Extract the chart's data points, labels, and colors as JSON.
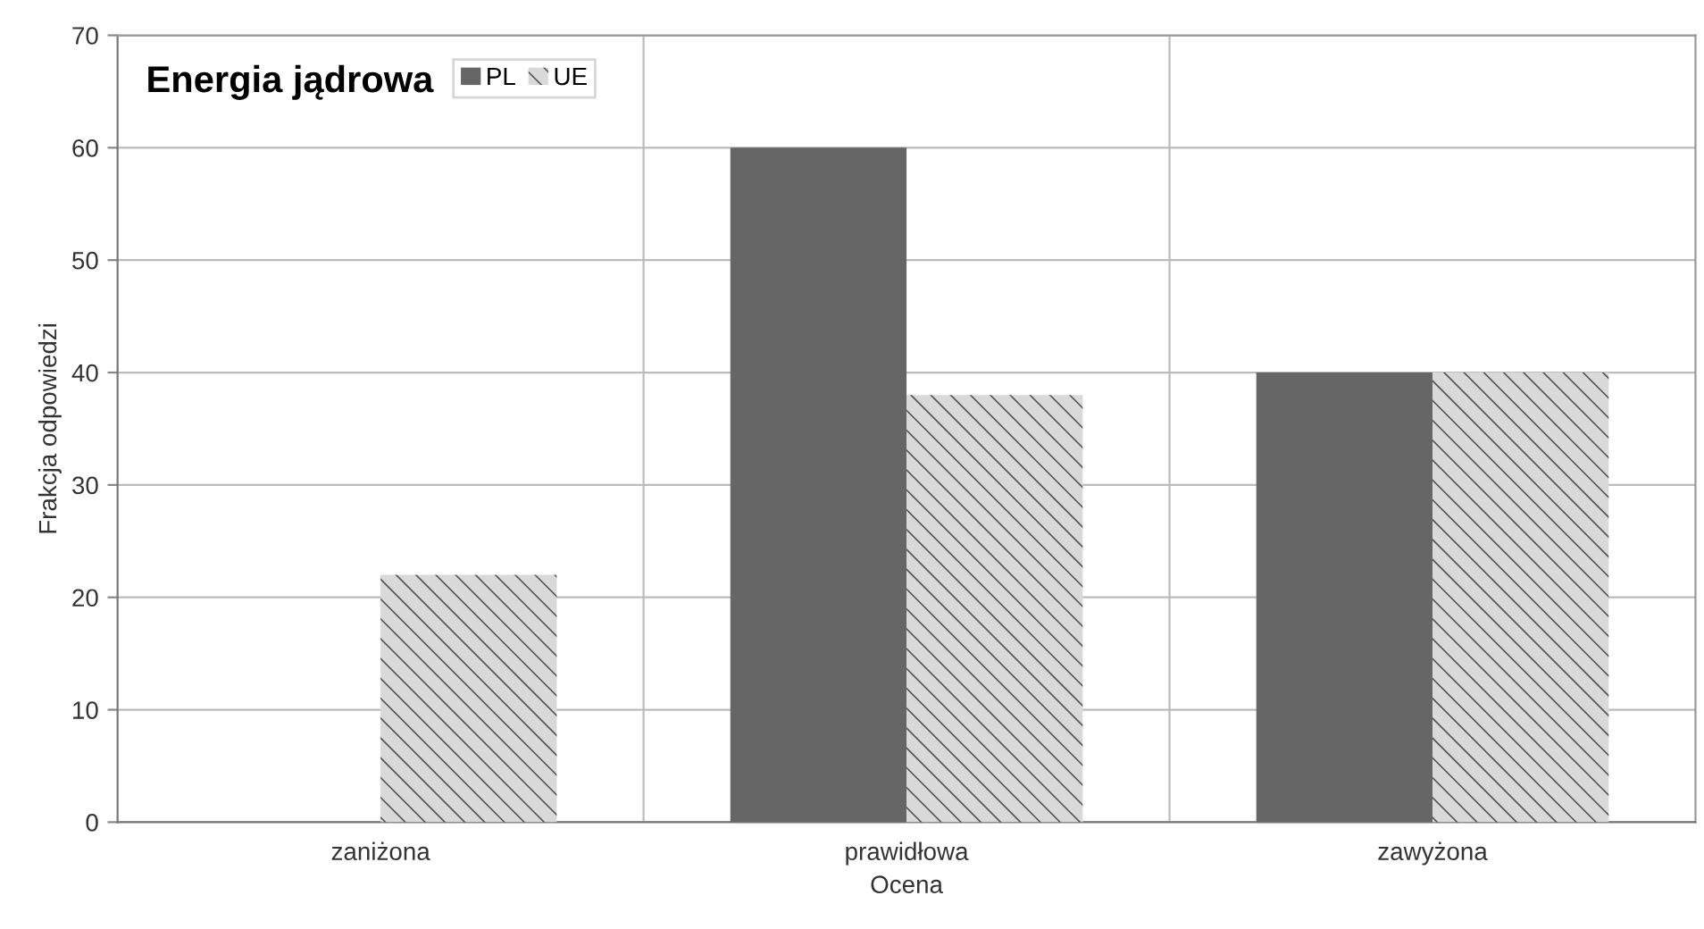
{
  "chart_data": {
    "type": "bar",
    "title": "Energia jądrowa",
    "xlabel": "Ocena",
    "ylabel": "Frakcja odpowiedzi",
    "categories": [
      "zaniżona",
      "prawidłowa",
      "zawyżona"
    ],
    "series": [
      {
        "name": "PL",
        "color": "#666666",
        "values": [
          0,
          60,
          40
        ]
      },
      {
        "name": "UE",
        "color": "#d9d9d9",
        "values": [
          22,
          38,
          40
        ]
      }
    ],
    "ylim": [
      0,
      70
    ],
    "yticks": [
      0,
      10,
      20,
      30,
      40,
      50,
      60,
      70
    ],
    "grid": true,
    "legend": "top left"
  }
}
